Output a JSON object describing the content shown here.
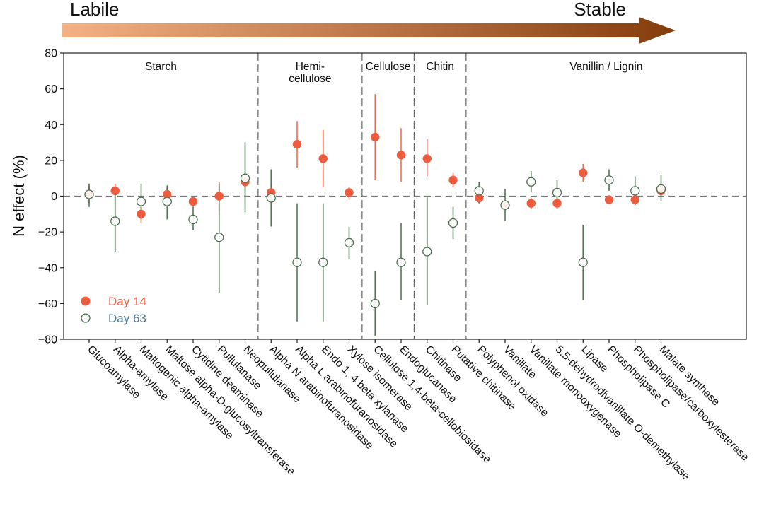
{
  "chart_data": {
    "type": "scatter",
    "arrow": {
      "left_label": "Labile",
      "right_label": "Stable",
      "color_start": "#F5B183",
      "color_end": "#843C0C"
    },
    "ylabel": "N effect (%)",
    "ylim": [
      -80,
      80
    ],
    "yticks": [
      80,
      60,
      40,
      20,
      0,
      -20,
      -40,
      -60,
      -80
    ],
    "categories": [
      "Glucoamylase",
      "Alpha-amylase",
      "Maltogenic alpha-amylase",
      "Maltose alpha-D-glucosyltransferase",
      "Cytidine deaminase",
      "Pullulanase",
      "Neopullulanase",
      "Alpha N arabinofuranosidase",
      "Alpha L arabinofuranosidase",
      "Endo 1, 4 beta xylanase",
      "Xylose isomerase",
      "Cellulose 1,4-beta-cellobiosidase",
      "Endoglucanase",
      "Chitinase",
      "Putative chitinase",
      "Polyphenol oxidase",
      "Vanillate",
      "Vanillate monooxygenase",
      "5,5-dehydrodivanillate O-demethylase",
      "Lipase",
      "Phospholipase C",
      "Phospholipase/carboxylesterase",
      "Malate synthase"
    ],
    "groups": [
      {
        "label": "Starch",
        "start": 0,
        "end": 6
      },
      {
        "label": "Hemi-",
        "label2": "cellulose",
        "start": 7,
        "end": 10
      },
      {
        "label": "Cellulose",
        "start": 11,
        "end": 12
      },
      {
        "label": "Chitin",
        "start": 13,
        "end": 14
      },
      {
        "label": "Vanillin / Lignin",
        "start": 15,
        "end": 22
      }
    ],
    "series": [
      {
        "name": "Day 14",
        "color": "#EE5C3F",
        "marker": "filled-circle",
        "values": [
          1,
          3,
          -10,
          1,
          -3,
          0,
          8,
          2,
          29,
          21,
          2,
          33,
          23,
          21,
          9,
          -1,
          -5,
          -4,
          -4,
          13,
          -2,
          -2,
          3
        ],
        "err_low": [
          -4,
          -4,
          -15,
          -3,
          -6,
          -8,
          3,
          -3,
          16,
          5,
          -2,
          9,
          8,
          11,
          5,
          -4,
          -8,
          -7,
          -7,
          8,
          -4,
          -5,
          0
        ],
        "err_high": [
          6,
          7,
          -5,
          5,
          -1,
          8,
          12,
          7,
          42,
          37,
          5,
          57,
          38,
          32,
          13,
          2,
          -2,
          -1,
          -1,
          18,
          0,
          1,
          6
        ]
      },
      {
        "name": "Day 63",
        "color": "#4A6E4F",
        "label_color": "#4B7A9B",
        "marker": "open-circle",
        "values": [
          1,
          -14,
          -3,
          -3,
          -13,
          -23,
          10,
          -1,
          -37,
          -37,
          -26,
          -60,
          -37,
          -31,
          -15,
          3,
          -5,
          8,
          2,
          -37,
          9,
          3,
          4
        ],
        "err_low": [
          -6,
          -31,
          -13,
          -13,
          -19,
          -54,
          -9,
          -17,
          -70,
          -70,
          -35,
          -78,
          -58,
          -61,
          -24,
          -4,
          -14,
          2,
          -4,
          -58,
          3,
          -5,
          -3
        ],
        "err_high": [
          7,
          2,
          7,
          6,
          -6,
          7,
          30,
          15,
          -4,
          -4,
          -17,
          -42,
          -15,
          0,
          -6,
          8,
          4,
          14,
          9,
          -16,
          15,
          11,
          12
        ]
      }
    ]
  }
}
